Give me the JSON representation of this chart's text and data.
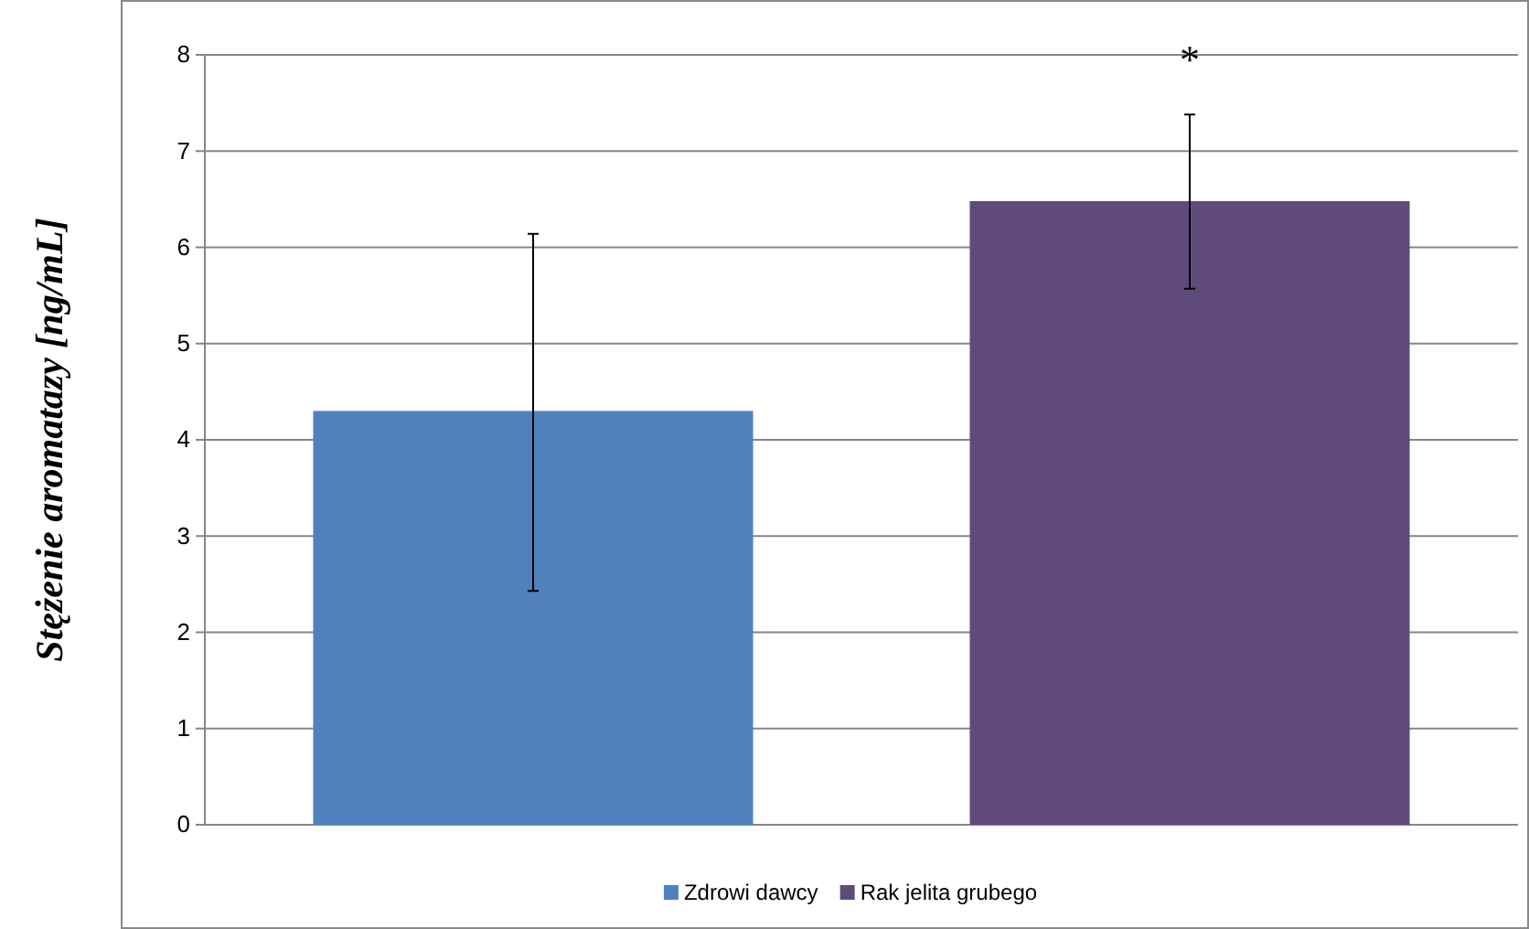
{
  "chart_data": {
    "type": "bar",
    "ylabel": "Stężenie aromatazy [ng/mL]",
    "categories": [
      null,
      null
    ],
    "series": [
      {
        "name": "Zdrowi dawcy",
        "color": "#4f81bd",
        "values": [
          4.3,
          null
        ],
        "errors": [
          [
            2.43,
            6.14
          ],
          null
        ]
      },
      {
        "name": "Rak jelita grubego",
        "color": "#604a7b",
        "values": [
          null,
          6.48
        ],
        "errors": [
          null,
          [
            5.57,
            7.38
          ]
        ]
      }
    ],
    "ylim": [
      0,
      8
    ],
    "yticks": [
      0,
      1,
      2,
      3,
      4,
      5,
      6,
      7,
      8
    ],
    "grid": "y",
    "legend": "bottom",
    "tick_labels": "y",
    "annotations": [
      "*"
    ]
  }
}
